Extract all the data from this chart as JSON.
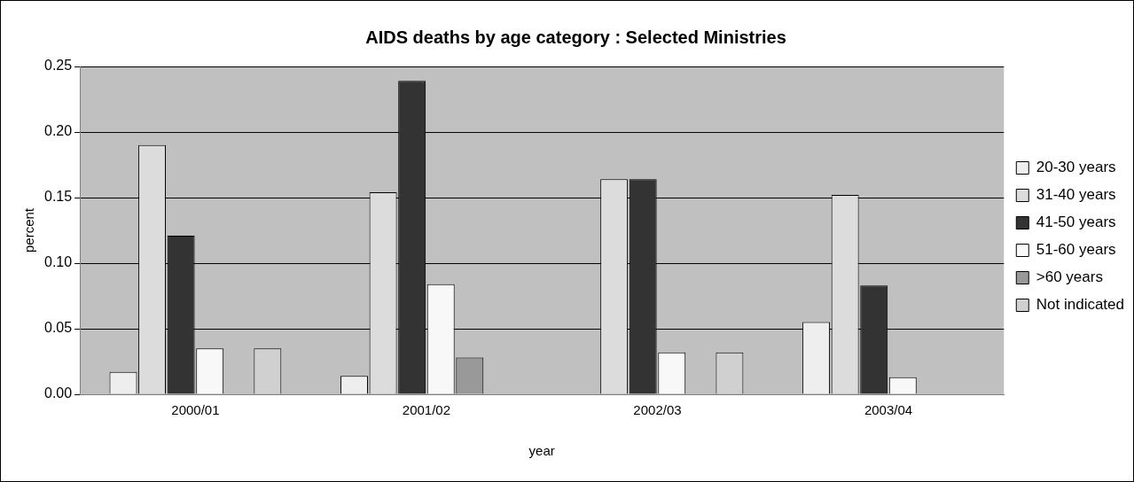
{
  "chart_data": {
    "type": "bar",
    "title": "AIDS deaths by age category : Selected Ministries",
    "xlabel": "year",
    "ylabel": "percent",
    "categories": [
      "2000/01",
      "2001/02",
      "2002/03",
      "2003/04"
    ],
    "series": [
      {
        "name": "20-30 years",
        "color": "#eeeeee",
        "values": [
          0.017,
          0.014,
          0,
          0.055
        ]
      },
      {
        "name": "31-40 years",
        "color": "#dcdcdc",
        "values": [
          0.19,
          0.154,
          0.164,
          0.152
        ]
      },
      {
        "name": "41-50 years",
        "color": "#333333",
        "values": [
          0.121,
          0.239,
          0.164,
          0.083
        ]
      },
      {
        "name": "51-60 years",
        "color": "#f8f8f8",
        "values": [
          0.035,
          0.084,
          0.032,
          0.013
        ]
      },
      {
        "name": ">60 years",
        "color": "#999999",
        "values": [
          0,
          0.028,
          0,
          0
        ]
      },
      {
        "name": "Not indicated",
        "color": "#d0d0d0",
        "values": [
          0.035,
          0,
          0.032,
          0
        ]
      }
    ],
    "ylim": [
      0,
      0.25
    ],
    "yticks": [
      {
        "value": 0,
        "label": "0.00"
      },
      {
        "value": 0.05,
        "label": "0.05"
      },
      {
        "value": 0.1,
        "label": "0.10"
      },
      {
        "value": 0.15,
        "label": "0.15"
      },
      {
        "value": 0.2,
        "label": "0.20"
      },
      {
        "value": 0.25,
        "label": "0.25"
      }
    ],
    "grid": "y",
    "legend": "right"
  }
}
